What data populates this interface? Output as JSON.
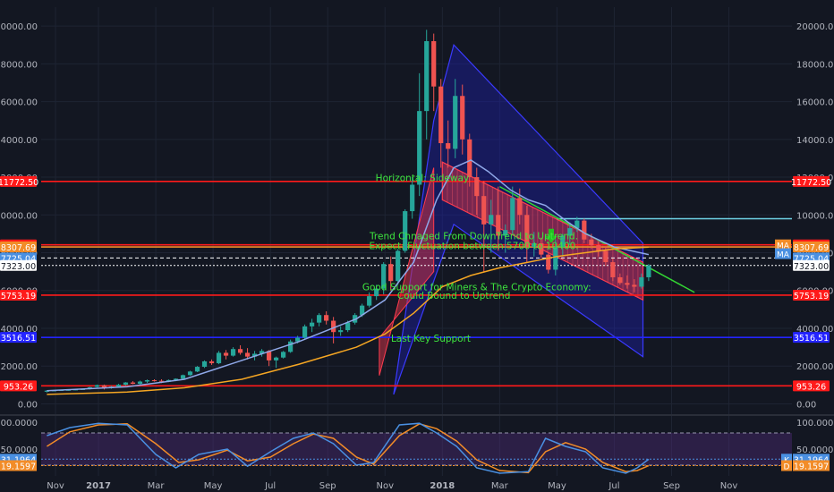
{
  "chart_data": {
    "type": "candlestick",
    "title": "",
    "xlabel": "",
    "ylabel": "",
    "grid": true,
    "background": "#131722",
    "colors": {
      "up": "#26a69a",
      "down": "#ef5350",
      "ma_fast": "#8fa8e8",
      "ma_slow": "#f5a623",
      "red_level": "#ff1a1a",
      "blue_level": "#2424ff",
      "cyan_level": "#6fd3e6"
    },
    "price_axis": {
      "ylim": [
        -500,
        21000
      ],
      "ticks": [
        "0.00",
        "2000.00",
        "4000.00",
        "6000.00",
        "8000.00",
        "10000.00",
        "12000.00",
        "14000.00",
        "16000.00",
        "18000.00",
        "20000.00"
      ]
    },
    "time_axis": {
      "labels": [
        [
          "Nov",
          -1.5
        ],
        [
          "2017",
          0
        ],
        [
          "Mar",
          2
        ],
        [
          "May",
          4
        ],
        [
          "Jul",
          6
        ],
        [
          "Sep",
          8
        ],
        [
          "Nov",
          10
        ],
        [
          "2018",
          12
        ],
        [
          "Mar",
          14
        ],
        [
          "May",
          16
        ],
        [
          "Jul",
          18
        ],
        [
          "Sep",
          20
        ],
        [
          "Nov",
          22
        ]
      ],
      "xlim": [
        -2,
        24.2
      ]
    },
    "candles": [
      [
        -1.8,
        640,
        720,
        600,
        700
      ],
      [
        -1.55,
        700,
        730,
        680,
        710
      ],
      [
        -1.3,
        710,
        750,
        690,
        730
      ],
      [
        -1.05,
        730,
        760,
        700,
        740
      ],
      [
        -0.8,
        740,
        780,
        720,
        760
      ],
      [
        -0.55,
        760,
        800,
        740,
        780
      ],
      [
        -0.3,
        780,
        900,
        760,
        880
      ],
      [
        -0.05,
        900,
        1020,
        860,
        990
      ],
      [
        0.2,
        990,
        1020,
        760,
        830
      ],
      [
        0.45,
        830,
        950,
        800,
        910
      ],
      [
        0.7,
        910,
        1060,
        890,
        1010
      ],
      [
        0.95,
        1010,
        1150,
        970,
        1130
      ],
      [
        1.2,
        1130,
        1200,
        1040,
        1060
      ],
      [
        1.45,
        1060,
        1230,
        1030,
        1180
      ],
      [
        1.7,
        1180,
        1290,
        1110,
        1250
      ],
      [
        1.95,
        1250,
        1300,
        1180,
        1220
      ],
      [
        2.2,
        1220,
        1300,
        1100,
        1170
      ],
      [
        2.45,
        1170,
        1290,
        1150,
        1260
      ],
      [
        2.7,
        1260,
        1350,
        1200,
        1330
      ],
      [
        2.95,
        1330,
        1550,
        1300,
        1520
      ],
      [
        3.2,
        1520,
        1750,
        1480,
        1710
      ],
      [
        3.45,
        1710,
        2000,
        1680,
        1960
      ],
      [
        3.7,
        1960,
        2300,
        1900,
        2250
      ],
      [
        3.95,
        2250,
        2350,
        2060,
        2150
      ],
      [
        4.2,
        2150,
        2800,
        2100,
        2700
      ],
      [
        4.45,
        2700,
        2850,
        2350,
        2550
      ],
      [
        4.7,
        2550,
        3000,
        2500,
        2900
      ],
      [
        4.95,
        2900,
        3100,
        2600,
        2700
      ],
      [
        5.2,
        2700,
        2950,
        2350,
        2500
      ],
      [
        5.45,
        2500,
        2800,
        2300,
        2650
      ],
      [
        5.7,
        2650,
        2900,
        2500,
        2800
      ],
      [
        5.95,
        2800,
        2850,
        2000,
        2300
      ],
      [
        6.2,
        2300,
        2500,
        1900,
        2450
      ],
      [
        6.45,
        2450,
        2800,
        2400,
        2750
      ],
      [
        6.7,
        2750,
        3400,
        2700,
        3300
      ],
      [
        6.95,
        3300,
        3600,
        3200,
        3500
      ],
      [
        7.2,
        3500,
        4200,
        3400,
        4100
      ],
      [
        7.45,
        4100,
        4500,
        3800,
        4300
      ],
      [
        7.7,
        4300,
        4800,
        4100,
        4700
      ],
      [
        7.95,
        4700,
        4900,
        4200,
        4400
      ],
      [
        8.2,
        4400,
        4600,
        3200,
        3800
      ],
      [
        8.45,
        3800,
        4100,
        3600,
        3900
      ],
      [
        8.7,
        3900,
        4400,
        3800,
        4300
      ],
      [
        8.95,
        4300,
        4800,
        4200,
        4700
      ],
      [
        9.2,
        4700,
        5300,
        4600,
        5200
      ],
      [
        9.45,
        5200,
        5900,
        5100,
        5700
      ],
      [
        9.7,
        5700,
        6300,
        5500,
        6100
      ],
      [
        9.95,
        6100,
        7500,
        5800,
        7400
      ],
      [
        10.2,
        7400,
        7800,
        6000,
        6500
      ],
      [
        10.45,
        6500,
        8200,
        6300,
        8100
      ],
      [
        10.7,
        8100,
        10300,
        8000,
        10200
      ],
      [
        10.95,
        10200,
        12000,
        9800,
        11600
      ],
      [
        11.2,
        11600,
        17500,
        11000,
        15500
      ],
      [
        11.45,
        15500,
        19800,
        14000,
        19200
      ],
      [
        11.7,
        19200,
        19600,
        15500,
        16800
      ],
      [
        11.95,
        16800,
        17200,
        12500,
        13800
      ],
      [
        12.2,
        13800,
        15000,
        12500,
        13500
      ],
      [
        12.45,
        13500,
        17200,
        13000,
        16300
      ],
      [
        12.7,
        16300,
        16900,
        13200,
        14000
      ],
      [
        12.95,
        14000,
        14300,
        11500,
        12000
      ],
      [
        13.2,
        12000,
        12500,
        10000,
        11000
      ],
      [
        13.45,
        11000,
        11800,
        7000,
        9500
      ],
      [
        13.7,
        9500,
        10800,
        8000,
        10000
      ],
      [
        13.95,
        10000,
        11500,
        8100,
        8900
      ],
      [
        14.2,
        8900,
        9500,
        8000,
        9200
      ],
      [
        14.45,
        9200,
        11500,
        9000,
        10900
      ],
      [
        14.7,
        10900,
        11400,
        9500,
        10000
      ],
      [
        14.95,
        10000,
        10500,
        7500,
        8300
      ],
      [
        15.2,
        8300,
        9100,
        7800,
        8500
      ],
      [
        15.45,
        8500,
        8800,
        7700,
        7900
      ],
      [
        15.7,
        7900,
        8000,
        6900,
        7100
      ],
      [
        15.95,
        7100,
        8700,
        6800,
        8300
      ],
      [
        16.2,
        8300,
        9000,
        7800,
        8900
      ],
      [
        16.45,
        8900,
        9600,
        8400,
        9300
      ],
      [
        16.7,
        9300,
        9900,
        9100,
        9700
      ],
      [
        16.95,
        9700,
        9800,
        8500,
        8700
      ],
      [
        17.2,
        8700,
        9000,
        8200,
        8400
      ],
      [
        17.45,
        8400,
        8600,
        7800,
        8100
      ],
      [
        17.7,
        8100,
        8300,
        7300,
        7500
      ],
      [
        17.95,
        7500,
        7700,
        6500,
        6700
      ],
      [
        18.2,
        6700,
        6900,
        6300,
        6400
      ],
      [
        18.45,
        6400,
        6800,
        6100,
        6300
      ],
      [
        18.7,
        6300,
        6600,
        5900,
        6200
      ],
      [
        18.95,
        6200,
        6900,
        6100,
        6700
      ],
      [
        19.2,
        6700,
        7400,
        6500,
        7323
      ]
    ],
    "ma_fast": [
      [
        -1.8,
        700
      ],
      [
        1,
        900
      ],
      [
        3,
        1300
      ],
      [
        5,
        2300
      ],
      [
        7,
        3300
      ],
      [
        9,
        4500
      ],
      [
        10,
        5500
      ],
      [
        11,
        7500
      ],
      [
        11.8,
        10800
      ],
      [
        12.4,
        12500
      ],
      [
        13,
        12900
      ],
      [
        13.6,
        12300
      ],
      [
        14.4,
        11300
      ],
      [
        15,
        10800
      ],
      [
        15.6,
        10500
      ],
      [
        16.4,
        9600
      ],
      [
        17,
        9000
      ],
      [
        18,
        8300
      ],
      [
        19.2,
        7900
      ]
    ],
    "ma_slow": [
      [
        -1.8,
        500
      ],
      [
        1,
        620
      ],
      [
        3,
        850
      ],
      [
        5,
        1300
      ],
      [
        7,
        2100
      ],
      [
        9,
        3000
      ],
      [
        10,
        3700
      ],
      [
        11,
        4800
      ],
      [
        12,
        6200
      ],
      [
        13,
        6800
      ],
      [
        14,
        7200
      ],
      [
        15,
        7500
      ],
      [
        16,
        7800
      ],
      [
        17,
        8000
      ],
      [
        18,
        8200
      ],
      [
        19.2,
        8300
      ]
    ],
    "levels": [
      {
        "value": 11772.5,
        "label": "11772.50",
        "color": "#ff1a1a",
        "style": "solid"
      },
      {
        "value": 8417.48,
        "label": "8417.48",
        "color": "#ff1a1a",
        "style": "solid"
      },
      {
        "value": 8307.69,
        "label": "8307.69",
        "color": "#f28c28",
        "style": "solid"
      },
      {
        "value": 7725.04,
        "label": "7725.04",
        "color": "#ffffff",
        "style": "dashed"
      },
      {
        "value": 7323.0,
        "label": "7323.00",
        "color": "#ffffff",
        "style": "dotted"
      },
      {
        "value": 5753.19,
        "label": "5753.19",
        "color": "#ff1a1a",
        "style": "solid"
      },
      {
        "value": 3516.51,
        "label": "3516.51",
        "color": "#2424ff",
        "style": "solid"
      },
      {
        "value": 953.26,
        "label": "953.26",
        "color": "#ff1a1a",
        "style": "solid"
      }
    ],
    "right_badges": [
      {
        "value": 11772.5,
        "label": "11772.50",
        "color": "#ff1a1a"
      },
      {
        "value": 8417.48,
        "label": "8417.48",
        "color": "#ff1a1a"
      },
      {
        "value": 8307.69,
        "label": "8307.69",
        "color": "#f28c28"
      },
      {
        "value": 7725.04,
        "label": "7725.04",
        "color": "#4a90e2"
      },
      {
        "value": 7323.0,
        "label": "7323.00",
        "color": "#ffffff"
      },
      {
        "value": 5753.19,
        "label": "5753.19",
        "color": "#ff1a1a"
      },
      {
        "value": 3516.51,
        "label": "3516.51",
        "color": "#2424ff"
      },
      {
        "value": 953.26,
        "label": "953.26",
        "color": "#ff1a1a"
      }
    ],
    "left_badges": [
      {
        "value": 11772.5,
        "label": "11772.50",
        "color": "#ff1a1a"
      },
      {
        "value": 8417.48,
        "label": "8417.48",
        "color": "#ff1a1a"
      },
      {
        "value": 8307.69,
        "label": "8307.69",
        "color": "#f28c28"
      },
      {
        "value": 7725.04,
        "label": "7725.04",
        "color": "#4a90e2"
      },
      {
        "value": 7323.0,
        "label": "7323.00",
        "color": "#ffffff"
      },
      {
        "value": 5753.19,
        "label": "5753.19",
        "color": "#ff1a1a"
      },
      {
        "value": 3516.51,
        "label": "3516.51",
        "color": "#2424ff"
      },
      {
        "value": 953.26,
        "label": "953.26",
        "color": "#ff1a1a"
      }
    ],
    "ma_tags": [
      "MA",
      "MA"
    ],
    "cyan_segment": {
      "x1": 16.0,
      "x2": 24.2,
      "value": 9800
    },
    "green_trendline": [
      [
        14.0,
        11500
      ],
      [
        20.8,
        5900
      ]
    ],
    "blue_pattern": [
      [
        10.3,
        500
      ],
      [
        11.7,
        15000
      ],
      [
        12.4,
        19000
      ],
      [
        19.0,
        8500
      ],
      [
        19.0,
        2500
      ],
      [
        12.4,
        9500
      ],
      [
        10.3,
        500
      ]
    ],
    "red_channel": [
      [
        12.0,
        12800
      ],
      [
        19.0,
        7500
      ],
      [
        19.0,
        5500
      ],
      [
        12.0,
        10800
      ]
    ],
    "red_wedge": [
      [
        9.8,
        1500
      ],
      [
        11.7,
        12500
      ],
      [
        11.7,
        7000
      ],
      [
        9.8,
        3500
      ]
    ],
    "green_arrow": {
      "x": 15.8,
      "y": 8700
    },
    "annotations": [
      {
        "text": "Horizontal:   Sideway",
        "x": 11.3,
        "y": 11800
      },
      {
        "text": "Trend Chnaged From DownTrend to Uptrend.",
        "x": 13.1,
        "y": 8700
      },
      {
        "text": "Expect:  Fluctuation between 5700 to 10400.",
        "x": 13.1,
        "y": 8200
      },
      {
        "text": "Good Support for Miners & The Crypto Economy:",
        "x": 13.2,
        "y": 6000
      },
      {
        "text": "Could Bound to Uptrend",
        "x": 12.4,
        "y": 5550
      },
      {
        "text": "Last Key Support",
        "x": 11.6,
        "y": 3300
      }
    ],
    "osc": {
      "ylim": [
        0,
        110
      ],
      "ticks": [
        "100.0000",
        "50.0000"
      ],
      "k_value": "31.1964",
      "d_value": "19.1597",
      "k_tag": "K",
      "d_tag": "D",
      "upper": 80,
      "lower": 20,
      "k": [
        [
          -1.8,
          75
        ],
        [
          -1,
          90
        ],
        [
          0,
          98
        ],
        [
          1,
          95
        ],
        [
          2,
          40
        ],
        [
          2.7,
          15
        ],
        [
          3.5,
          40
        ],
        [
          4.5,
          50
        ],
        [
          5.2,
          18
        ],
        [
          6,
          45
        ],
        [
          6.8,
          70
        ],
        [
          7.5,
          80
        ],
        [
          8.2,
          60
        ],
        [
          9,
          20
        ],
        [
          9.6,
          25
        ],
        [
          10.5,
          95
        ],
        [
          11.2,
          98
        ],
        [
          11.8,
          80
        ],
        [
          12.5,
          55
        ],
        [
          13.2,
          15
        ],
        [
          14,
          5
        ],
        [
          15,
          8
        ],
        [
          15.6,
          70
        ],
        [
          16.3,
          55
        ],
        [
          17,
          45
        ],
        [
          17.6,
          15
        ],
        [
          18.4,
          5
        ],
        [
          18.8,
          15
        ],
        [
          19.2,
          31
        ]
      ],
      "d": [
        [
          -1.8,
          55
        ],
        [
          -1,
          82
        ],
        [
          0,
          95
        ],
        [
          1,
          97
        ],
        [
          2,
          60
        ],
        [
          2.8,
          25
        ],
        [
          3.5,
          30
        ],
        [
          4.5,
          48
        ],
        [
          5.2,
          28
        ],
        [
          6,
          35
        ],
        [
          6.8,
          60
        ],
        [
          7.5,
          78
        ],
        [
          8.2,
          70
        ],
        [
          9,
          35
        ],
        [
          9.6,
          22
        ],
        [
          10.5,
          75
        ],
        [
          11.2,
          97
        ],
        [
          11.8,
          88
        ],
        [
          12.5,
          65
        ],
        [
          13.2,
          30
        ],
        [
          14,
          10
        ],
        [
          15,
          6
        ],
        [
          15.6,
          45
        ],
        [
          16.3,
          62
        ],
        [
          17,
          50
        ],
        [
          17.6,
          25
        ],
        [
          18.4,
          8
        ],
        [
          18.8,
          10
        ],
        [
          19.2,
          19
        ]
      ]
    }
  }
}
